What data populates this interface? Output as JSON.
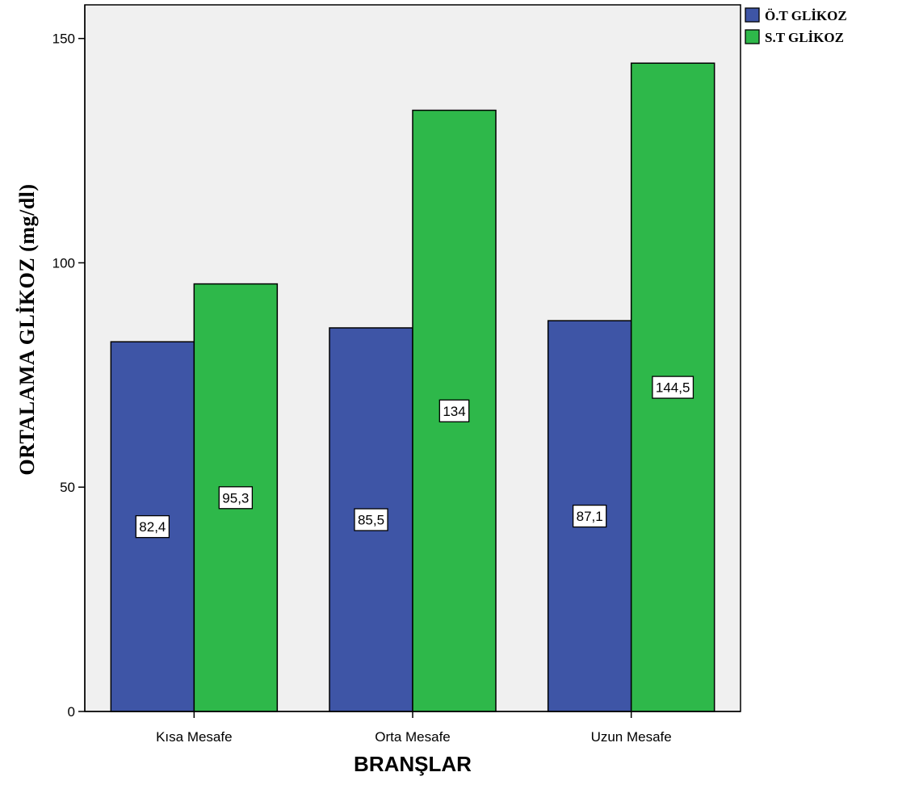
{
  "chart_data": {
    "type": "bar",
    "categories": [
      "Kısa Mesafe",
      "Orta Mesafe",
      "Uzun Mesafe"
    ],
    "series": [
      {
        "name": "Ö.T GLİKOZ",
        "values": [
          82.4,
          85.5,
          87.1
        ],
        "labels": [
          "82,4",
          "85,5",
          "87,1"
        ],
        "color": "#3e55a6"
      },
      {
        "name": "S.T GLİKOZ",
        "values": [
          95.3,
          134,
          144.5
        ],
        "labels": [
          "95,3",
          "134",
          "144,5"
        ],
        "color": "#2eb84a"
      }
    ],
    "xlabel": "BRANŞLAR",
    "ylabel": "ORTALAMA GLİKOZ  (mg/dl)",
    "ylim": [
      0,
      157.5
    ],
    "yticks": [
      0,
      50,
      100,
      150
    ],
    "ytick_labels": [
      "0",
      "50",
      "100",
      "150"
    ],
    "grid": false,
    "legend_position": "top-right",
    "plot_background": "#f0f0f0"
  }
}
